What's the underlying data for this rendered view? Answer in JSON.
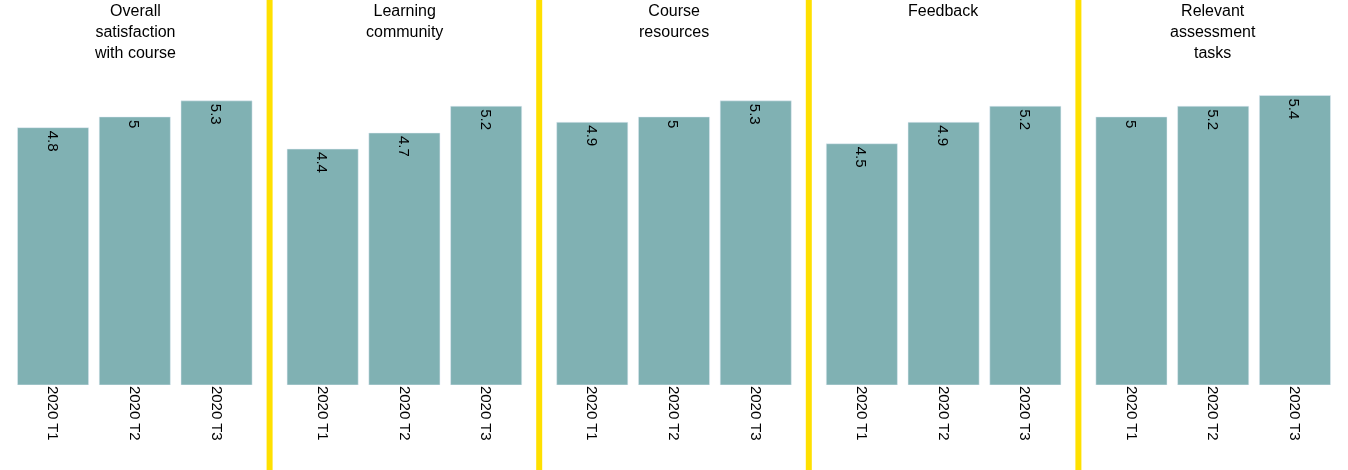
{
  "chart_data": [
    {
      "type": "bar",
      "title": "Overall satisfaction with course",
      "categories": [
        "2020 T1",
        "2020 T2",
        "2020 T3"
      ],
      "values": [
        4.8,
        5,
        5.3
      ],
      "color": "#80b1b3",
      "data_labels": true
    },
    {
      "type": "bar",
      "title": "Learning community",
      "categories": [
        "2020 T1",
        "2020 T2",
        "2020 T3"
      ],
      "values": [
        4.4,
        4.7,
        5.2
      ],
      "color": "#80b1b3",
      "data_labels": true
    },
    {
      "type": "bar",
      "title": "Course resources",
      "categories": [
        "2020 T1",
        "2020 T2",
        "2020 T3"
      ],
      "values": [
        4.9,
        5,
        5.3
      ],
      "color": "#80b1b3",
      "data_labels": true
    },
    {
      "type": "bar",
      "title": "Feedback",
      "categories": [
        "2020 T1",
        "2020 T2",
        "2020 T3"
      ],
      "values": [
        4.5,
        4.9,
        5.2
      ],
      "color": "#80b1b3",
      "data_labels": true
    },
    {
      "type": "bar",
      "title": "Relevant assessment tasks",
      "categories": [
        "2020 T1",
        "2020 T2",
        "2020 T3"
      ],
      "values": [
        5,
        5.2,
        5.4
      ],
      "color": "#80b1b3",
      "data_labels": true
    }
  ]
}
